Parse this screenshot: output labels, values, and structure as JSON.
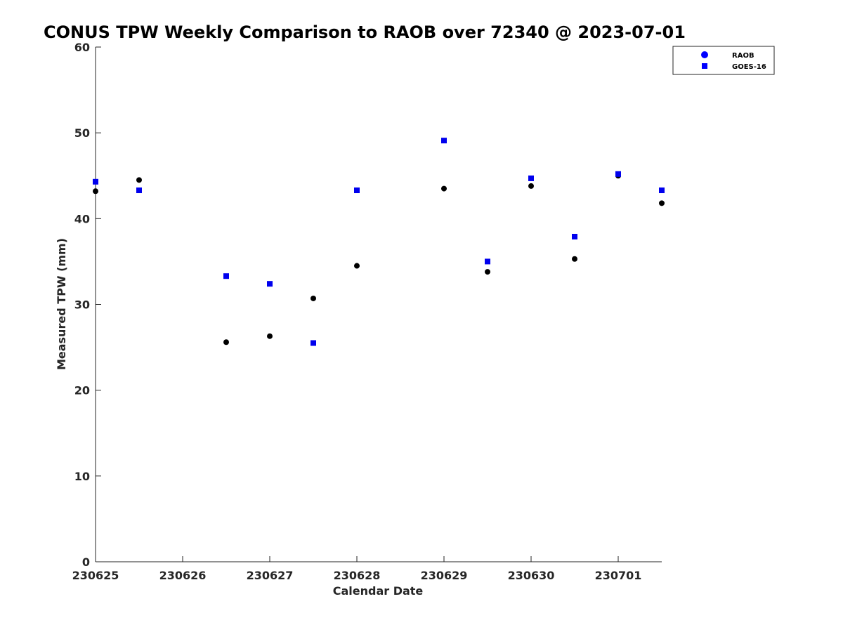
{
  "chart_data": {
    "type": "scatter",
    "title": "CONUS TPW Weekly Comparison to RAOB over 72340 @ 2023-07-01",
    "xlabel": "Calendar Date",
    "ylabel": "Measured TPW (mm)",
    "xlim": [
      0,
      6.5
    ],
    "ylim": [
      0,
      60
    ],
    "x_ticks": [
      {
        "value": 0,
        "label": "230625"
      },
      {
        "value": 1,
        "label": "230626"
      },
      {
        "value": 2,
        "label": "230627"
      },
      {
        "value": 3,
        "label": "230628"
      },
      {
        "value": 4,
        "label": "230629"
      },
      {
        "value": 5,
        "label": "230630"
      },
      {
        "value": 6,
        "label": "230701"
      }
    ],
    "y_ticks": [
      {
        "value": 0,
        "label": "0"
      },
      {
        "value": 10,
        "label": "10"
      },
      {
        "value": 20,
        "label": "20"
      },
      {
        "value": 30,
        "label": "30"
      },
      {
        "value": 40,
        "label": "40"
      },
      {
        "value": 50,
        "label": "50"
      },
      {
        "value": 60,
        "label": "60"
      }
    ],
    "grid": false,
    "legend_position": "top-right",
    "series": [
      {
        "name": "RAOB",
        "marker": "circle",
        "color": "#000000",
        "legend_color": "#0000ff",
        "x": [
          0,
          0.5,
          1.5,
          2,
          2.5,
          3,
          4,
          4.5,
          5,
          5.5,
          6,
          6.5
        ],
        "y": [
          43.2,
          44.5,
          25.6,
          26.3,
          30.7,
          34.5,
          43.5,
          33.8,
          43.8,
          35.3,
          45.0,
          41.8
        ]
      },
      {
        "name": "GOES-16",
        "marker": "square",
        "color": "#0000ee",
        "legend_color": "#0000ff",
        "x": [
          0,
          0.5,
          1.5,
          2,
          2.5,
          3,
          4,
          4.5,
          5,
          5.5,
          6,
          6.5
        ],
        "y": [
          44.3,
          43.3,
          33.3,
          32.4,
          25.5,
          43.3,
          49.1,
          35.0,
          44.7,
          37.9,
          45.2,
          43.3
        ]
      }
    ]
  }
}
